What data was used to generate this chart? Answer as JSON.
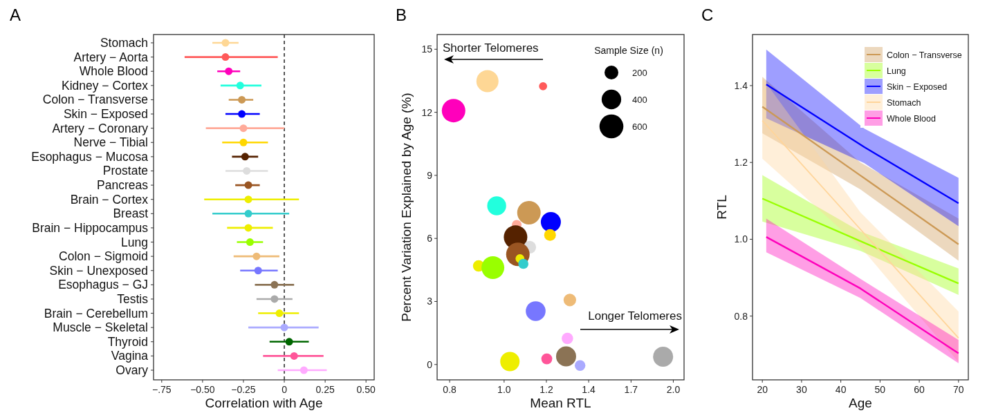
{
  "chart_data": [
    {
      "type": "scatter",
      "title": "A",
      "orientation": "horizontal",
      "marker": "circle",
      "xlabel": "Correlation with Age",
      "categories": [
        "Stomach",
        "Artery − Aorta",
        "Whole Blood",
        "Kidney − Cortex",
        "Colon − Transverse",
        "Skin − Exposed",
        "Artery − Coronary",
        "Nerve − Tibial",
        "Esophagus − Mucosa",
        "Prostate",
        "Pancreas",
        "Brain − Cortex",
        "Breast",
        "Brain − Hippocampus",
        "Lung",
        "Colon − Sigmoid",
        "Skin − Unexposed",
        "Esophagus − GJ",
        "Testis",
        "Brain − Cerebellum",
        "Muscle − Skeletal",
        "Thyroid",
        "Vagina",
        "Ovary"
      ],
      "values": [
        -0.36,
        -0.36,
        -0.34,
        -0.27,
        -0.26,
        -0.26,
        -0.25,
        -0.25,
        -0.24,
        -0.23,
        -0.22,
        -0.22,
        -0.22,
        -0.22,
        -0.21,
        -0.17,
        -0.16,
        -0.06,
        -0.06,
        -0.03,
        0.0,
        0.03,
        0.06,
        0.12
      ],
      "errors": [
        [
          -0.44,
          -0.28
        ],
        [
          -0.61,
          -0.04
        ],
        [
          -0.41,
          -0.27
        ],
        [
          -0.39,
          -0.14
        ],
        [
          -0.34,
          -0.19
        ],
        [
          -0.36,
          -0.15
        ],
        [
          -0.48,
          0.0
        ],
        [
          -0.38,
          -0.1
        ],
        [
          -0.32,
          -0.16
        ],
        [
          -0.36,
          -0.1
        ],
        [
          -0.3,
          -0.15
        ],
        [
          -0.49,
          0.09
        ],
        [
          -0.44,
          0.03
        ],
        [
          -0.35,
          -0.07
        ],
        [
          -0.29,
          -0.13
        ],
        [
          -0.31,
          -0.03
        ],
        [
          -0.27,
          -0.04
        ],
        [
          -0.18,
          0.06
        ],
        [
          -0.17,
          0.05
        ],
        [
          -0.16,
          0.09
        ],
        [
          -0.22,
          0.21
        ],
        [
          -0.09,
          0.15
        ],
        [
          -0.13,
          0.24
        ],
        [
          -0.04,
          0.26
        ]
      ],
      "colors": [
        "#fed795",
        "#ff5a5a",
        "#ff00bb",
        "#22ffdd",
        "#cc9955",
        "#0000ff",
        "#ffaa99",
        "#ffd700",
        "#552200",
        "#dddddd",
        "#995522",
        "#eeee00",
        "#33cccc",
        "#eeee00",
        "#99ff00",
        "#eebb77",
        "#7777ff",
        "#8b7355",
        "#aaaaaa",
        "#eeee00",
        "#aaaaff",
        "#006600",
        "#ff5599",
        "#ffaaff"
      ],
      "xlim": [
        -0.8,
        0.55
      ],
      "xticks": [
        {
          "value": -0.75,
          "label": "−.75"
        },
        {
          "value": -0.5,
          "label": "−0.50"
        },
        {
          "value": -0.25,
          "label": "−0.25"
        },
        0,
        {
          "value": 0.25,
          "label": "0.25"
        },
        {
          "value": 0.5,
          "label": "0.50"
        }
      ],
      "ref_lines": [
        {
          "axis": "x",
          "value": 0,
          "line_style": "dashed",
          "color": "#000000"
        }
      ]
    },
    {
      "type": "bubble",
      "title": "B",
      "xlabel": "Mean RTL",
      "ylabel": "Percent Variation Explained by Age (%)",
      "log": "x",
      "legend_title": "Sample Size (n)",
      "size_legend": [
        200,
        400,
        600
      ],
      "x": [
        0.934,
        1.173,
        0.813,
        0.97,
        1.107,
        1.211,
        1.053,
        1.048,
        1.207,
        1.111,
        1.058,
        1.067,
        1.082,
        0.901,
        0.955,
        1.309,
        1.138,
        1.289,
        1.918,
        1.024,
        1.365,
        1.191,
        1.296
      ],
      "values": [
        13.48,
        13.24,
        12.08,
        7.55,
        7.22,
        6.78,
        6.65,
        6.06,
        6.16,
        5.58,
        5.24,
        5.04,
        4.79,
        4.69,
        4.61,
        3.07,
        2.54,
        0.39,
        0.37,
        0.14,
        -0.05,
        0.27,
        1.24
      ],
      "sizes": [
        513,
        70,
        579,
        376,
        579,
        421,
        98,
        579,
        145,
        166,
        579,
        82,
        107,
        138,
        546,
        166,
        410,
        421,
        421,
        393,
        119,
        125,
        138
      ],
      "colors": [
        "#fed795",
        "#ff5a5a",
        "#ff00bb",
        "#22ffdd",
        "#cc9955",
        "#0000ff",
        "#ffaa99",
        "#552200",
        "#ffd700",
        "#dddddd",
        "#995522",
        "#eeee00",
        "#33cccc",
        "#eeee00",
        "#99ff00",
        "#eebb77",
        "#7777ff",
        "#8b7355",
        "#aaaaaa",
        "#eeee00",
        "#aaaaff",
        "#ff5599",
        "#ffaaff"
      ],
      "xlim": [
        0.76,
        2.09
      ],
      "xticks": [
        0.8,
        {
          "value": 1,
          "label": "1.0"
        },
        {
          "value": 1.189,
          "label": "1.2"
        },
        {
          "value": 1.414,
          "label": "1.4"
        },
        {
          "value": 1.682,
          "label": "1.7"
        },
        {
          "value": 2,
          "label": "2.0"
        }
      ],
      "ylim": [
        -0.73,
        15.7
      ],
      "yticks": [
        0,
        3,
        6,
        9,
        12,
        15
      ],
      "annotations": [
        "Shorter Telomeres",
        "Longer Telomeres"
      ]
    },
    {
      "type": "line",
      "title": "C",
      "xlabel": "Age",
      "ylabel": "RTL",
      "legend": "top right",
      "xlim": [
        17.5,
        72.5
      ],
      "xticks": [
        20,
        30,
        40,
        50,
        60,
        70
      ],
      "ylim": [
        0.634,
        1.533
      ],
      "yticks": [
        {
          "value": 0.8,
          "label": "0.8"
        },
        {
          "value": 1,
          "label": "1.0"
        },
        {
          "value": 1.2,
          "label": "1.2"
        },
        {
          "value": 1.4,
          "label": "1.4"
        }
      ],
      "series": [
        {
          "name": "Colon − Transverse",
          "color": "#cc9955",
          "x": [
            20,
            45,
            70
          ],
          "values": [
            1.345,
            1.166,
            0.987
          ],
          "upper": [
            1.423,
            1.2,
            1.054
          ],
          "lower": [
            1.276,
            1.13,
            0.944
          ]
        },
        {
          "name": "Lung",
          "color": "#99ff00",
          "x": [
            20,
            45,
            70
          ],
          "values": [
            1.106,
            0.995,
            0.885
          ],
          "upper": [
            1.167,
            1.02,
            0.924
          ],
          "lower": [
            1.046,
            0.97,
            0.855
          ]
        },
        {
          "name": "Skin − Exposed",
          "color": "#0000ff",
          "x": [
            21,
            46,
            70
          ],
          "values": [
            1.403,
            1.24,
            1.094
          ],
          "upper": [
            1.494,
            1.288,
            1.16
          ],
          "lower": [
            1.315,
            1.198,
            1.034
          ]
        },
        {
          "name": "Stomach",
          "color": "#ffd59a",
          "x": [
            20,
            45,
            70
          ],
          "values": [
            1.309,
            1.026,
            0.743
          ],
          "upper": [
            1.42,
            1.07,
            0.812
          ],
          "lower": [
            1.21,
            0.98,
            0.68
          ]
        },
        {
          "name": "Whole Blood",
          "color": "#ff00bb",
          "x": [
            21,
            45,
            70
          ],
          "values": [
            1.006,
            0.872,
            0.703
          ],
          "upper": [
            1.054,
            0.897,
            0.738
          ],
          "lower": [
            0.966,
            0.847,
            0.677
          ]
        }
      ]
    }
  ]
}
